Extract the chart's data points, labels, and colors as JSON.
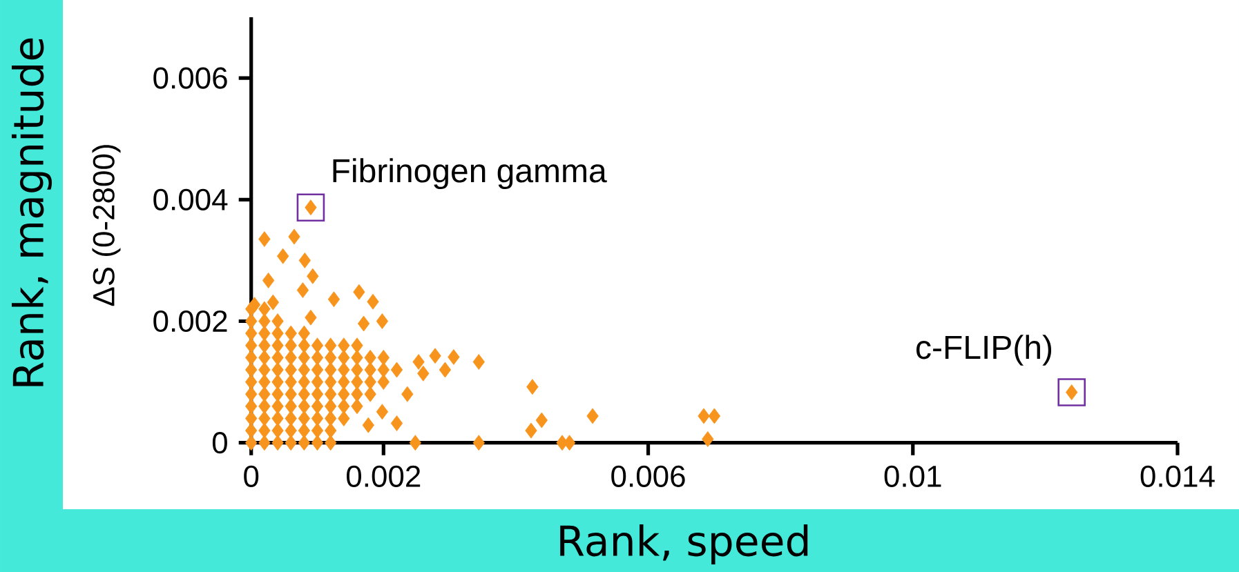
{
  "chart_data": {
    "type": "scatter",
    "xlabel": "Rank, speed",
    "ylabel": "ΔS (0-2800)",
    "xlim": [
      0,
      0.014
    ],
    "ylim": [
      0,
      0.007
    ],
    "xticks": [
      0,
      0.002,
      0.006,
      0.01,
      0.014
    ],
    "yticks": [
      0,
      0.002,
      0.004,
      0.006
    ],
    "marker": "diamond",
    "series": [
      {
        "color": "#f7941d",
        "x": [
          0.0009,
          0.0124,
          0.0002,
          0.00065,
          0.00048,
          0.00081,
          0.00093,
          0.00026,
          0.00078,
          0.00033,
          0.00125,
          0.00163,
          0.00184,
          0.00198,
          0.0017,
          0.0009,
          5e-05,
          0.00253,
          0.0026,
          0.00278,
          0.00306,
          0.00293,
          0.00344,
          0.00236,
          0.00198,
          0.0022,
          0.00177,
          0.00248,
          0.00344,
          0.00425,
          0.00439,
          0.00423,
          0.00516,
          0.0047,
          0.00481,
          0.00684,
          0.007,
          0.0069
        ],
        "values": [
          0.00387,
          0.00083,
          0.00335,
          0.00339,
          0.00307,
          0.003,
          0.00274,
          0.00267,
          0.00251,
          0.00231,
          0.00236,
          0.00248,
          0.00232,
          0.002,
          0.00196,
          0.00206,
          0.00227,
          0.00133,
          0.00114,
          0.00143,
          0.00141,
          0.0012,
          0.00133,
          0.0008,
          0.00051,
          0.00032,
          0.00029,
          0,
          0,
          0.00092,
          0.00037,
          0.0002,
          0.00044,
          0,
          0,
          0.00044,
          0.00044,
          6e-05
        ]
      },
      {
        "color": "#f7941d",
        "x": [
          0,
          0,
          0,
          0,
          0,
          0,
          0,
          0,
          0,
          0,
          0,
          0,
          0.0002,
          0.0002,
          0.0002,
          0.0002,
          0.0002,
          0.0002,
          0.0002,
          0.0002,
          0.0002,
          0.0002,
          0.0002,
          0.0002,
          0.0004,
          0.0004,
          0.0004,
          0.0004,
          0.0004,
          0.0004,
          0.0004,
          0.0004,
          0.0004,
          0.0004,
          0.0004,
          0.0006,
          0.0006,
          0.0006,
          0.0006,
          0.0006,
          0.0006,
          0.0006,
          0.0006,
          0.0006,
          0.0006,
          0.0008,
          0.0008,
          0.0008,
          0.0008,
          0.0008,
          0.0008,
          0.0008,
          0.0008,
          0.0008,
          0.0008,
          0.001,
          0.001,
          0.001,
          0.001,
          0.001,
          0.001,
          0.001,
          0.001,
          0.001,
          0.0012,
          0.0012,
          0.0012,
          0.0012,
          0.0012,
          0.0012,
          0.0012,
          0.0012,
          0.0012,
          0.0014,
          0.0014,
          0.0014,
          0.0014,
          0.0014,
          0.0014,
          0.0014,
          0.0016,
          0.0016,
          0.0016,
          0.0016,
          0.0016,
          0.0016,
          0.0018,
          0.0018,
          0.0018,
          0.0018,
          0.002,
          0.002,
          0.002,
          0.0022
        ],
        "values": [
          0,
          0.0002,
          0.0004,
          0.0006,
          0.0008,
          0.001,
          0.0012,
          0.0014,
          0.0016,
          0.0018,
          0.002,
          0.0022,
          0,
          0.0002,
          0.0004,
          0.0006,
          0.0008,
          0.001,
          0.0012,
          0.0014,
          0.0016,
          0.0018,
          0.002,
          0.0022,
          0,
          0.0002,
          0.0004,
          0.0006,
          0.0008,
          0.001,
          0.0012,
          0.0014,
          0.0016,
          0.0018,
          0.002,
          0,
          0.0002,
          0.0004,
          0.0006,
          0.0008,
          0.001,
          0.0012,
          0.0014,
          0.0016,
          0.0018,
          0,
          0.0002,
          0.0004,
          0.0006,
          0.0008,
          0.001,
          0.0012,
          0.0014,
          0.0016,
          0.0018,
          0,
          0.0002,
          0.0004,
          0.0006,
          0.0008,
          0.001,
          0.0012,
          0.0014,
          0.0016,
          0,
          0.0002,
          0.0004,
          0.0006,
          0.0008,
          0.001,
          0.0012,
          0.0014,
          0.0016,
          0.0004,
          0.0006,
          0.0008,
          0.001,
          0.0012,
          0.0014,
          0.0016,
          0.0006,
          0.0008,
          0.001,
          0.0012,
          0.0014,
          0.0016,
          0.0008,
          0.001,
          0.0012,
          0.0014,
          0.001,
          0.0012,
          0.0014,
          0.0012
        ]
      }
    ],
    "annotations": [
      {
        "text": "Fibrinogen gamma",
        "x": 0.0009,
        "y": 0.00387
      },
      {
        "text": "c-FLIP(h)",
        "x": 0.0124,
        "y": 0.00083
      },
      "Rank, magnitude"
    ]
  }
}
